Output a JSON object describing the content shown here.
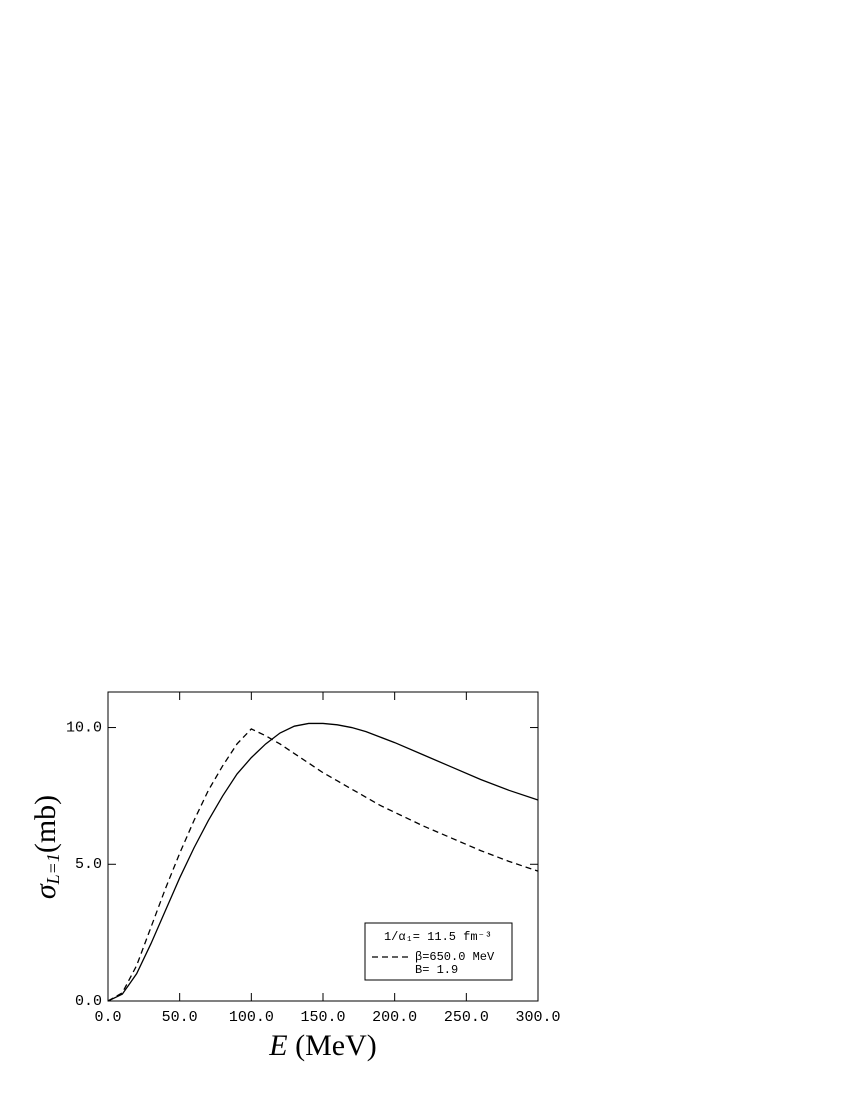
{
  "chart_data": {
    "type": "line",
    "xlabel_symbol": "E",
    "xlabel_unit": "(MeV)",
    "ylabel_symbol": "σ",
    "ylabel_subscript": "L=1",
    "ylabel_unit": "(mb)",
    "x": [
      0,
      10,
      20,
      30,
      40,
      50,
      60,
      70,
      80,
      90,
      100,
      110,
      120,
      130,
      140,
      150,
      160,
      170,
      180,
      190,
      200,
      220,
      240,
      260,
      280,
      300
    ],
    "series": [
      {
        "color": "#000000",
        "dash": false,
        "values": [
          0,
          0.25,
          1.0,
          2.1,
          3.3,
          4.5,
          5.6,
          6.6,
          7.5,
          8.3,
          8.9,
          9.4,
          9.8,
          10.05,
          10.15,
          10.15,
          10.1,
          10.0,
          9.85,
          9.65,
          9.45,
          9.0,
          8.55,
          8.1,
          7.7,
          7.35
        ]
      },
      {
        "name": "β=650.0 MeV",
        "color": "#000000",
        "dash": true,
        "values": [
          0,
          0.3,
          1.3,
          2.7,
          4.1,
          5.4,
          6.6,
          7.7,
          8.6,
          9.4,
          9.95,
          9.7,
          9.4,
          9.05,
          8.7,
          8.35,
          8.05,
          7.75,
          7.45,
          7.15,
          6.9,
          6.4,
          5.95,
          5.5,
          5.1,
          4.75
        ]
      }
    ],
    "legend_header": "1/α₁= 11.5 fm⁻³",
    "legend_footer": "B= 1.9",
    "xlim": [
      0,
      300
    ],
    "xticks": [
      {
        "value": 0,
        "label": "0.0"
      },
      {
        "value": 50,
        "label": "50.0"
      },
      {
        "value": 100,
        "label": "100.0"
      },
      {
        "value": 150,
        "label": "150.0"
      },
      {
        "value": 200,
        "label": "200.0"
      },
      {
        "value": 250,
        "label": "250.0"
      },
      {
        "value": 300,
        "label": "300.0"
      }
    ],
    "ylim": [
      0,
      11.3
    ],
    "yticks": [
      {
        "value": 0,
        "label": "0.0"
      },
      {
        "value": 5,
        "label": "5.0"
      },
      {
        "value": 10,
        "label": "10.0"
      }
    ],
    "grid": false
  }
}
